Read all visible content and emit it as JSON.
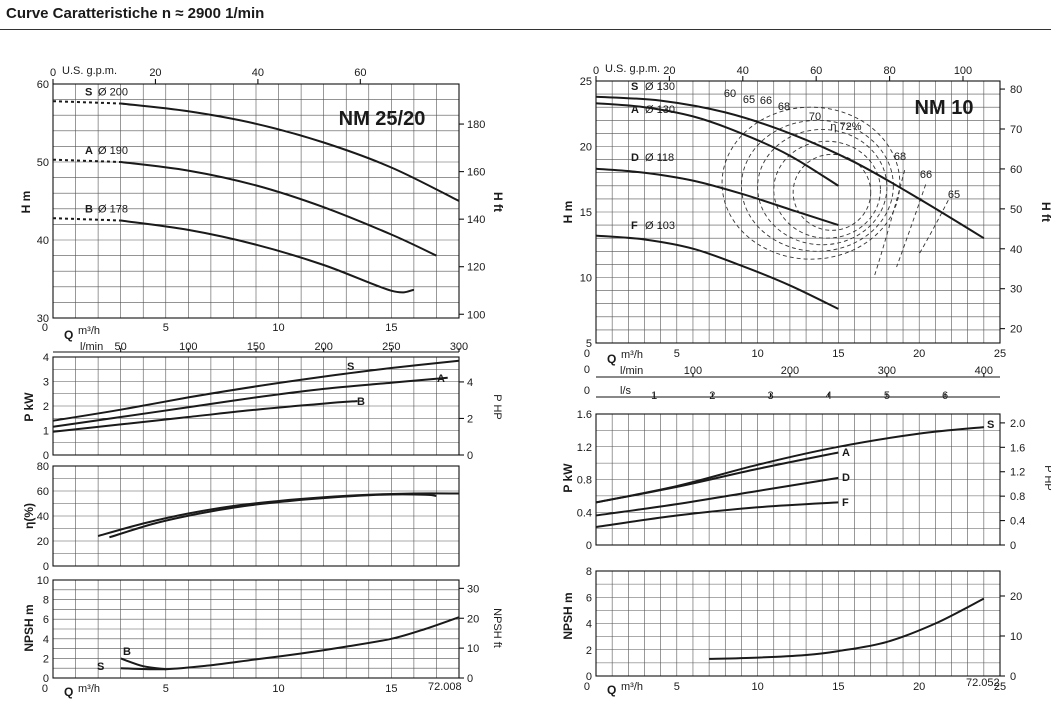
{
  "header": {
    "title": "Curve Caratteristiche n ≈ 2900 1/min"
  },
  "left_units": {
    "q": "Q",
    "q_unit": "m³/h",
    "lmin": "l/min",
    "gpm": "U.S. g.p.m.",
    "h": "H",
    "h_unit": "m",
    "h_ft": "H ft",
    "p": "P",
    "p_unit": "kW",
    "php": "P HP",
    "eta": "η(%)",
    "npsh": "NPSH",
    "npsh_unit": "m",
    "npsh_ft": "NPSH ft",
    "code": "72.008"
  },
  "right_units": {
    "q": "Q",
    "q_unit": "m³/h",
    "lmin": "l/min",
    "ls": "l/s",
    "gpm": "U.S. g.p.m.",
    "h": "H",
    "h_unit": "m",
    "h_ft": "H ft",
    "p": "P",
    "p_unit": "kW",
    "php": "P HP",
    "npsh": "NPSH",
    "npsh_unit": "m",
    "npsh_ft": "NPSH ft",
    "code": "72.052"
  },
  "chart_data": [
    {
      "type": "line",
      "title": "NM 25/20",
      "xlabel": "Q m³/h",
      "ylabel": "H m",
      "xlim": [
        0,
        18
      ],
      "ylim": [
        30,
        60
      ],
      "x_ticks": [
        "0",
        "5",
        "10",
        "15"
      ],
      "y_ticks": [
        "30",
        "40",
        "50",
        "60"
      ],
      "secondary_y_ticks": [
        "100",
        "120",
        "140",
        "160",
        "180"
      ],
      "top_gpm_ticks": [
        "0",
        "20",
        "40",
        "60"
      ],
      "lmin_ticks": [
        "50",
        "100",
        "150",
        "200",
        "250",
        "300"
      ],
      "series": [
        {
          "name": "S",
          "label": "Ø 200",
          "x": [
            3,
            6,
            9,
            12,
            15,
            18
          ],
          "y": [
            57.5,
            56.5,
            54.9,
            52.5,
            49.3,
            45.0
          ]
        },
        {
          "name": "A",
          "label": "Ø 190",
          "x": [
            3,
            6,
            9,
            12,
            15,
            17
          ],
          "y": [
            50.0,
            48.9,
            47.0,
            44.2,
            40.7,
            38.0
          ]
        },
        {
          "name": "B",
          "label": "Ø 178",
          "x": [
            3,
            6,
            9,
            12,
            15,
            16
          ],
          "y": [
            42.5,
            41.3,
            39.4,
            36.8,
            33.5,
            33.6
          ]
        }
      ]
    },
    {
      "type": "line",
      "xlabel": "Q",
      "ylabel": "P kW",
      "xlim": [
        0,
        18
      ],
      "ylim": [
        0,
        4
      ],
      "y_ticks": [
        "0",
        "1",
        "2",
        "3",
        "4"
      ],
      "secondary_y_ticks": [
        "0",
        "2",
        "4"
      ],
      "series": [
        {
          "name": "S",
          "x": [
            0,
            3,
            6,
            9,
            12,
            15,
            18
          ],
          "y": [
            1.4,
            1.85,
            2.35,
            2.8,
            3.2,
            3.55,
            3.85
          ]
        },
        {
          "name": "A",
          "x": [
            0,
            3,
            6,
            9,
            12,
            15,
            17.5
          ],
          "y": [
            1.15,
            1.55,
            1.95,
            2.35,
            2.7,
            2.95,
            3.15
          ]
        },
        {
          "name": "B",
          "x": [
            0,
            3,
            6,
            9,
            12,
            13.5
          ],
          "y": [
            0.95,
            1.25,
            1.55,
            1.85,
            2.1,
            2.2
          ]
        }
      ]
    },
    {
      "type": "line",
      "xlabel": "Q",
      "ylabel": "η(%)",
      "xlim": [
        0,
        18
      ],
      "ylim": [
        0,
        80
      ],
      "y_ticks": [
        "0",
        "20",
        "40",
        "60",
        "80"
      ],
      "series": [
        {
          "name": "S",
          "x": [
            2,
            4,
            6,
            8,
            10,
            12,
            14,
            16,
            18
          ],
          "y": [
            24,
            34,
            42,
            48,
            52,
            55,
            57,
            58,
            58
          ]
        },
        {
          "name": "A",
          "x": [
            2.5,
            4.5,
            6.5,
            8.5,
            10.5,
            12.5,
            14.5,
            16.5,
            17
          ],
          "y": [
            23,
            34,
            42,
            48,
            52,
            55,
            57,
            57,
            56
          ]
        }
      ]
    },
    {
      "type": "line",
      "xlabel": "Q m³/h",
      "ylabel": "NPSH m",
      "xlim": [
        0,
        18
      ],
      "ylim": [
        0,
        10
      ],
      "x_ticks": [
        "0",
        "5",
        "10",
        "15"
      ],
      "y_ticks": [
        "0",
        "2",
        "4",
        "6",
        "8",
        "10"
      ],
      "secondary_y_ticks": [
        "0",
        "10",
        "20",
        "30"
      ],
      "series": [
        {
          "name": "B",
          "x": [
            3,
            4,
            5
          ],
          "y": [
            2.0,
            1.2,
            0.9
          ]
        },
        {
          "name": "S",
          "x": [
            3,
            5,
            7,
            9,
            11,
            13,
            15,
            16.5,
            18
          ],
          "y": [
            1.0,
            0.9,
            1.3,
            1.9,
            2.5,
            3.2,
            4.0,
            5.0,
            6.2
          ]
        }
      ]
    },
    {
      "type": "line",
      "title": "NM 10",
      "xlabel": "Q m³/h",
      "ylabel": "H m",
      "xlim": [
        0,
        25
      ],
      "ylim": [
        5,
        25
      ],
      "x_ticks": [
        "0",
        "5",
        "10",
        "15",
        "20",
        "25"
      ],
      "y_ticks": [
        "5",
        "10",
        "15",
        "20",
        "25"
      ],
      "secondary_y_ticks": [
        "20",
        "30",
        "40",
        "50",
        "60",
        "70",
        "80"
      ],
      "top_gpm_ticks": [
        "0",
        "20",
        "40",
        "60",
        "80",
        "100"
      ],
      "lmin_ticks": [
        "100",
        "200",
        "300",
        "400"
      ],
      "ls_ticks": [
        "1",
        "2",
        "3",
        "4",
        "5",
        "6"
      ],
      "series": [
        {
          "name": "S",
          "label": "Ø 130",
          "x": [
            0,
            4,
            8,
            12,
            16,
            20,
            24
          ],
          "y": [
            23.8,
            23.5,
            22.6,
            21.0,
            18.8,
            16.0,
            13.0
          ]
        },
        {
          "name": "A",
          "label": "Ø 130",
          "x": [
            0,
            3,
            6,
            9,
            12,
            15
          ],
          "y": [
            23.3,
            23.0,
            22.3,
            21.0,
            19.3,
            17.0
          ]
        },
        {
          "name": "D",
          "label": "Ø 118",
          "x": [
            0,
            3,
            6,
            9,
            12,
            15
          ],
          "y": [
            18.3,
            18.0,
            17.4,
            16.4,
            15.2,
            14.0
          ]
        },
        {
          "name": "F",
          "label": "Ø 103",
          "x": [
            0,
            3,
            6,
            9,
            12,
            15
          ],
          "y": [
            13.2,
            12.9,
            12.2,
            10.9,
            9.4,
            7.6
          ]
        }
      ],
      "efficiency_labels": [
        "60",
        "65",
        "66",
        "68",
        "70",
        "η 72%",
        "68",
        "66",
        "65"
      ]
    },
    {
      "type": "line",
      "xlabel": "Q",
      "ylabel": "P kW",
      "xlim": [
        0,
        25
      ],
      "ylim": [
        0,
        1.6
      ],
      "y_ticks": [
        "0",
        "0.4",
        "0.8",
        "1.2",
        "1.6"
      ],
      "secondary_y_ticks": [
        "0",
        "0.4",
        "0.8",
        "1.2",
        "1.6",
        "2.0"
      ],
      "series": [
        {
          "name": "S",
          "x": [
            0,
            5,
            10,
            15,
            20,
            24
          ],
          "y": [
            0.52,
            0.72,
            0.98,
            1.2,
            1.36,
            1.44
          ]
        },
        {
          "name": "A",
          "x": [
            0,
            5,
            10,
            15
          ],
          "y": [
            0.52,
            0.71,
            0.93,
            1.13
          ]
        },
        {
          "name": "D",
          "x": [
            0,
            5,
            10,
            15
          ],
          "y": [
            0.36,
            0.5,
            0.66,
            0.82
          ]
        },
        {
          "name": "F",
          "x": [
            0,
            5,
            10,
            15
          ],
          "y": [
            0.22,
            0.36,
            0.46,
            0.52
          ]
        }
      ]
    },
    {
      "type": "line",
      "xlabel": "Q m³/h",
      "ylabel": "NPSH m",
      "xlim": [
        0,
        25
      ],
      "ylim": [
        0,
        8
      ],
      "x_ticks": [
        "0",
        "5",
        "10",
        "15",
        "20",
        "25"
      ],
      "y_ticks": [
        "0",
        "2",
        "4",
        "6",
        "8"
      ],
      "secondary_y_ticks": [
        "0",
        "10",
        "20"
      ],
      "series": [
        {
          "name": "S",
          "x": [
            7,
            10,
            13,
            15,
            18,
            21,
            24
          ],
          "y": [
            1.3,
            1.4,
            1.6,
            1.9,
            2.6,
            4.0,
            5.9
          ]
        }
      ]
    }
  ]
}
